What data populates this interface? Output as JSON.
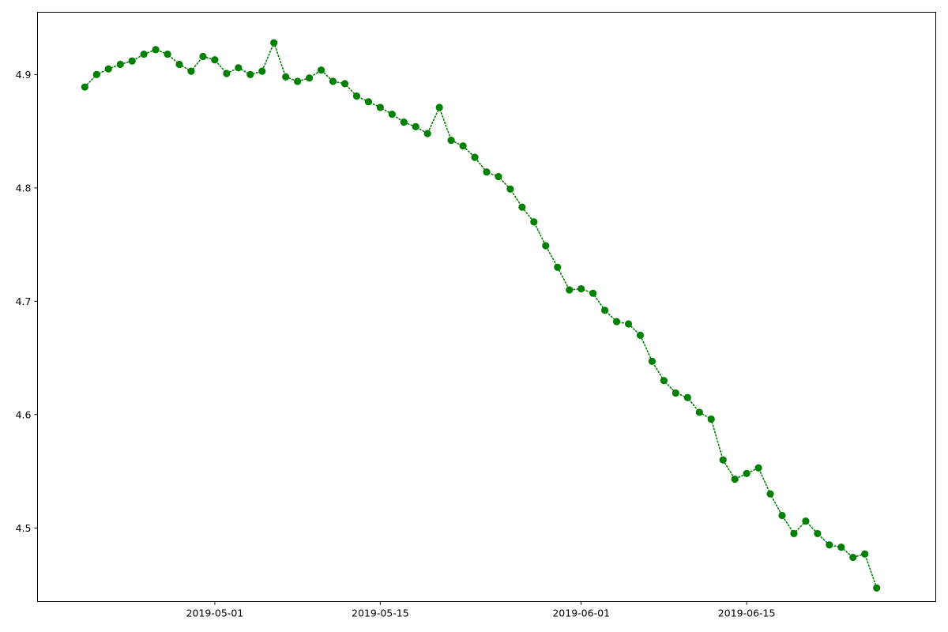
{
  "chart_data": {
    "type": "line",
    "title": "",
    "xlabel": "",
    "ylabel": "",
    "x_ticks": [
      "2019-05-01",
      "2019-05-15",
      "2019-06-01",
      "2019-06-15"
    ],
    "y_ticks": [
      4.5,
      4.6,
      4.7,
      4.8,
      4.9
    ],
    "xlim": [
      "2019-04-16",
      "2019-07-01"
    ],
    "ylim": [
      4.435,
      4.955
    ],
    "grid": false,
    "legend": "none",
    "series": [
      {
        "color": "#008000",
        "line_style": "dotted",
        "marker": "circle",
        "points": [
          [
            "2019-04-20",
            4.889
          ],
          [
            "2019-04-21",
            4.9
          ],
          [
            "2019-04-22",
            4.905
          ],
          [
            "2019-04-23",
            4.909
          ],
          [
            "2019-04-24",
            4.912
          ],
          [
            "2019-04-25",
            4.918
          ],
          [
            "2019-04-26",
            4.922
          ],
          [
            "2019-04-27",
            4.918
          ],
          [
            "2019-04-28",
            4.909
          ],
          [
            "2019-04-29",
            4.903
          ],
          [
            "2019-04-30",
            4.916
          ],
          [
            "2019-05-01",
            4.913
          ],
          [
            "2019-05-02",
            4.901
          ],
          [
            "2019-05-03",
            4.906
          ],
          [
            "2019-05-04",
            4.9
          ],
          [
            "2019-05-05",
            4.903
          ],
          [
            "2019-05-06",
            4.928
          ],
          [
            "2019-05-07",
            4.898
          ],
          [
            "2019-05-08",
            4.894
          ],
          [
            "2019-05-09",
            4.897
          ],
          [
            "2019-05-10",
            4.904
          ],
          [
            "2019-05-11",
            4.894
          ],
          [
            "2019-05-12",
            4.892
          ],
          [
            "2019-05-13",
            4.881
          ],
          [
            "2019-05-14",
            4.876
          ],
          [
            "2019-05-15",
            4.871
          ],
          [
            "2019-05-16",
            4.865
          ],
          [
            "2019-05-17",
            4.858
          ],
          [
            "2019-05-18",
            4.854
          ],
          [
            "2019-05-19",
            4.848
          ],
          [
            "2019-05-20",
            4.871
          ],
          [
            "2019-05-21",
            4.842
          ],
          [
            "2019-05-22",
            4.837
          ],
          [
            "2019-05-23",
            4.827
          ],
          [
            "2019-05-24",
            4.814
          ],
          [
            "2019-05-25",
            4.81
          ],
          [
            "2019-05-26",
            4.799
          ],
          [
            "2019-05-27",
            4.783
          ],
          [
            "2019-05-28",
            4.77
          ],
          [
            "2019-05-29",
            4.749
          ],
          [
            "2019-05-30",
            4.73
          ],
          [
            "2019-05-31",
            4.71
          ],
          [
            "2019-06-01",
            4.711
          ],
          [
            "2019-06-02",
            4.707
          ],
          [
            "2019-06-03",
            4.692
          ],
          [
            "2019-06-04",
            4.682
          ],
          [
            "2019-06-05",
            4.68
          ],
          [
            "2019-06-06",
            4.67
          ],
          [
            "2019-06-07",
            4.647
          ],
          [
            "2019-06-08",
            4.63
          ],
          [
            "2019-06-09",
            4.619
          ],
          [
            "2019-06-10",
            4.615
          ],
          [
            "2019-06-11",
            4.602
          ],
          [
            "2019-06-12",
            4.596
          ],
          [
            "2019-06-13",
            4.56
          ],
          [
            "2019-06-14",
            4.543
          ],
          [
            "2019-06-15",
            4.548
          ],
          [
            "2019-06-16",
            4.553
          ],
          [
            "2019-06-17",
            4.53
          ],
          [
            "2019-06-18",
            4.511
          ],
          [
            "2019-06-19",
            4.495
          ],
          [
            "2019-06-20",
            4.506
          ],
          [
            "2019-06-21",
            4.495
          ],
          [
            "2019-06-22",
            4.485
          ],
          [
            "2019-06-23",
            4.483
          ],
          [
            "2019-06-24",
            4.474
          ],
          [
            "2019-06-25",
            4.477
          ],
          [
            "2019-06-26",
            4.447
          ]
        ]
      }
    ]
  }
}
